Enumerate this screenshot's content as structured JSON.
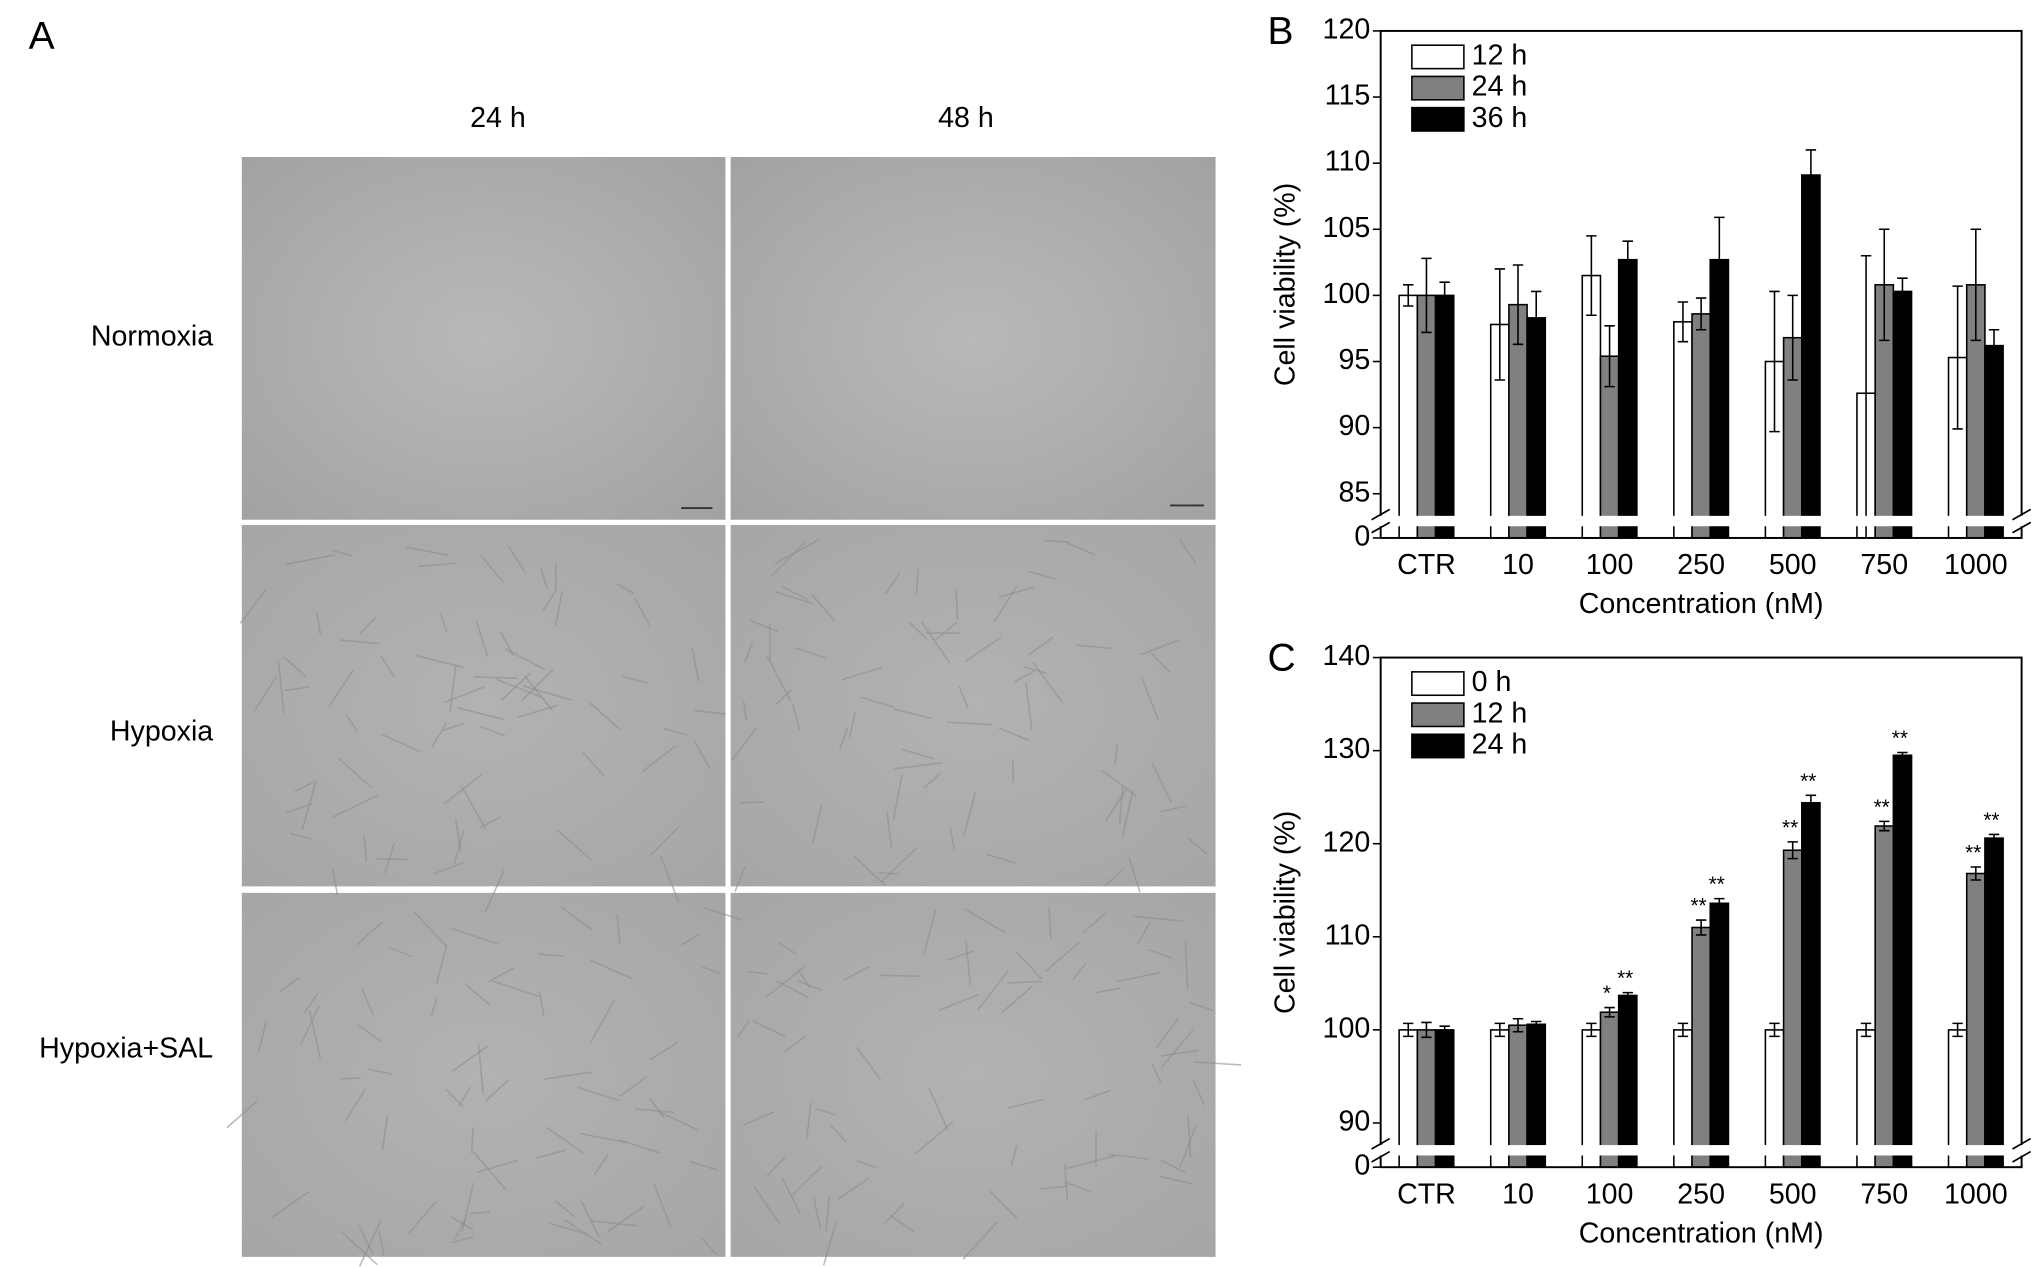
{
  "panel_a": {
    "label": "A",
    "columns": [
      "24 h",
      "48 h"
    ],
    "rows": [
      "Normoxia",
      "Hypoxia",
      "Hypoxia+SAL"
    ]
  },
  "chart_data": [
    {
      "type": "bar",
      "panel_label": "B",
      "ylabel": "Cell viability (%)",
      "xlabel": "Concentration (nM)",
      "categories": [
        "CTR",
        "10",
        "100",
        "250",
        "500",
        "750",
        "1000"
      ],
      "series": [
        {
          "name": "12 h",
          "color": "#ffffff",
          "values": [
            100,
            97.8,
            101.5,
            98,
            95,
            92.6,
            95.3
          ],
          "errors": [
            0.8,
            4.2,
            3,
            1.5,
            5.3,
            10.4,
            5.4
          ]
        },
        {
          "name": "24 h",
          "color": "#808080",
          "values": [
            100,
            99.3,
            95.4,
            98.6,
            96.8,
            100.8,
            100.8
          ],
          "errors": [
            2.8,
            3,
            2.3,
            1.2,
            3.2,
            4.2,
            4.2
          ]
        },
        {
          "name": "36 h",
          "color": "#000000",
          "values": [
            100,
            98.3,
            102.7,
            102.7,
            109.1,
            100.3,
            96.2
          ],
          "errors": [
            1,
            2,
            1.4,
            3.2,
            1.9,
            1,
            1.2
          ]
        }
      ],
      "ylim": [
        85,
        120
      ],
      "yticks": [
        0,
        85,
        90,
        95,
        100,
        105,
        110,
        115,
        120
      ],
      "axis_break": true,
      "legend": "upper left",
      "annotations": []
    },
    {
      "type": "bar",
      "panel_label": "C",
      "ylabel": "Cell viability (%)",
      "xlabel": "Concentration (nM)",
      "categories": [
        "CTR",
        "10",
        "100",
        "250",
        "500",
        "750",
        "1000"
      ],
      "series": [
        {
          "name": "0 h",
          "color": "#ffffff",
          "values": [
            100,
            100,
            100,
            100,
            100,
            100,
            100
          ],
          "errors": [
            0.7,
            0.7,
            0.7,
            0.7,
            0.7,
            0.7,
            0.7
          ]
        },
        {
          "name": "12 h",
          "color": "#808080",
          "values": [
            100,
            100.5,
            101.9,
            111,
            119.3,
            121.9,
            116.8
          ],
          "errors": [
            0.8,
            0.7,
            0.5,
            0.8,
            0.9,
            0.5,
            0.7
          ]
        },
        {
          "name": "24 h",
          "color": "#000000",
          "values": [
            100,
            100.6,
            103.7,
            113.6,
            124.4,
            129.5,
            120.6
          ],
          "errors": [
            0.4,
            0.3,
            0.3,
            0.5,
            0.8,
            0.3,
            0.4
          ]
        }
      ],
      "ylim": [
        90,
        140
      ],
      "yticks": [
        0,
        90,
        100,
        110,
        120,
        130,
        140
      ],
      "axis_break": true,
      "legend": "upper left",
      "annotations": [
        {
          "category": "100",
          "series": "12 h",
          "text": "*"
        },
        {
          "category": "100",
          "series": "24 h",
          "text": "**"
        },
        {
          "category": "250",
          "series": "12 h",
          "text": "**"
        },
        {
          "category": "250",
          "series": "24 h",
          "text": "**"
        },
        {
          "category": "500",
          "series": "12 h",
          "text": "**"
        },
        {
          "category": "500",
          "series": "24 h",
          "text": "**"
        },
        {
          "category": "750",
          "series": "12 h",
          "text": "**"
        },
        {
          "category": "750",
          "series": "24 h",
          "text": "**"
        },
        {
          "category": "1000",
          "series": "12 h",
          "text": "**"
        },
        {
          "category": "1000",
          "series": "24 h",
          "text": "**"
        }
      ]
    }
  ]
}
